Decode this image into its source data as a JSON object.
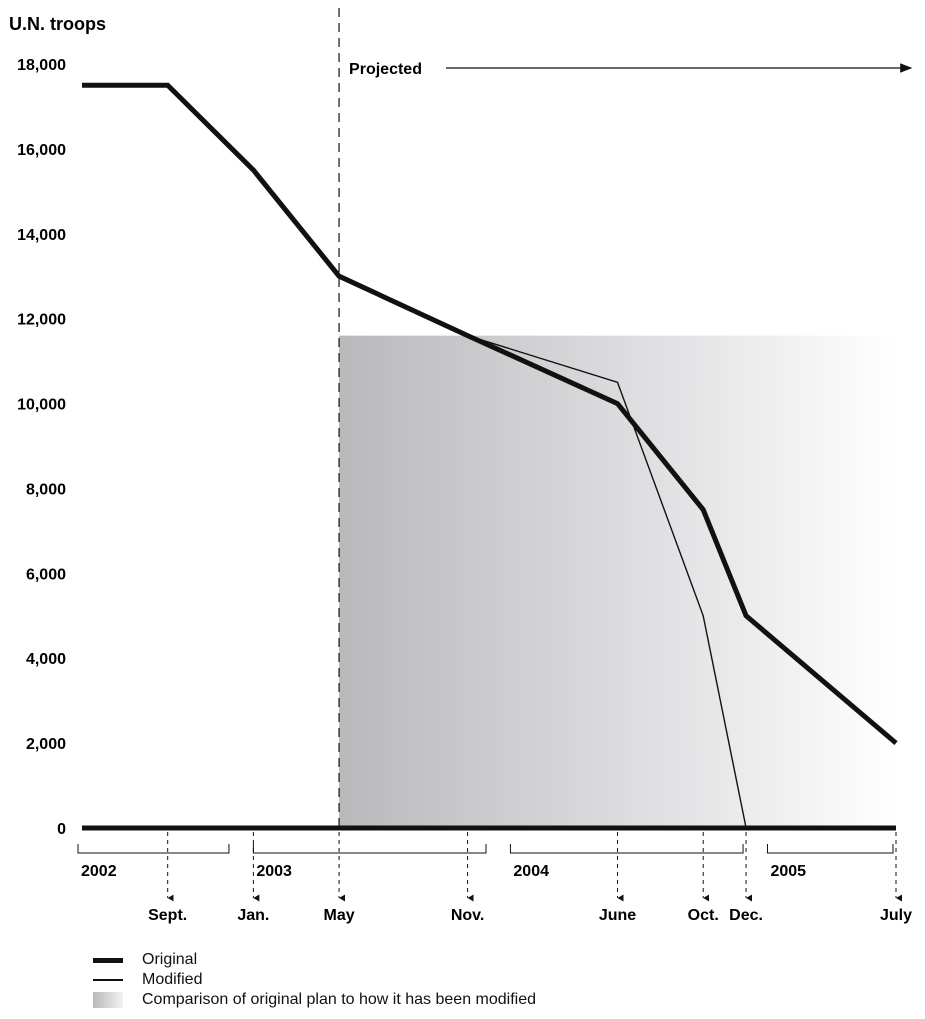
{
  "chart_data": {
    "type": "line",
    "ylabel": "U.N. troops",
    "ylim": [
      0,
      18000
    ],
    "yticks": [
      {
        "value": 18000,
        "label": "18,000"
      },
      {
        "value": 16000,
        "label": "16,000"
      },
      {
        "value": 14000,
        "label": "14,000"
      },
      {
        "value": 12000,
        "label": "12,000"
      },
      {
        "value": 10000,
        "label": "10,000"
      },
      {
        "value": 8000,
        "label": "8,000"
      },
      {
        "value": 6000,
        "label": "6,000"
      },
      {
        "value": 4000,
        "label": "4,000"
      },
      {
        "value": 2000,
        "label": "2,000"
      },
      {
        "value": 0,
        "label": "0"
      }
    ],
    "x_start": "2002-05",
    "x_end": "2005-07",
    "years": [
      {
        "label": "2002",
        "start": "2002-05",
        "end": "2002-12"
      },
      {
        "label": "2003",
        "start": "2003-01",
        "end": "2003-12"
      },
      {
        "label": "2004",
        "start": "2004-01",
        "end": "2004-12"
      },
      {
        "label": "2005",
        "start": "2005-01",
        "end": "2005-07"
      }
    ],
    "month_markers": [
      {
        "label": "Sept.",
        "date": "2002-09"
      },
      {
        "label": "Jan.",
        "date": "2003-01"
      },
      {
        "label": "May",
        "date": "2003-05"
      },
      {
        "label": "Nov.",
        "date": "2003-11"
      },
      {
        "label": "June",
        "date": "2004-06"
      },
      {
        "label": "Oct.",
        "date": "2004-10"
      },
      {
        "label": "Dec.",
        "date": "2004-12"
      },
      {
        "label": "July",
        "date": "2005-07"
      }
    ],
    "projected_from": "2003-05",
    "projected_label": "Projected",
    "series": [
      {
        "name": "Original",
        "points": [
          [
            "2002-05",
            17500
          ],
          [
            "2002-09",
            17500
          ],
          [
            "2003-01",
            15500
          ],
          [
            "2003-05",
            13000
          ],
          [
            "2003-11",
            11600
          ],
          [
            "2004-06",
            10000
          ],
          [
            "2004-10",
            7500
          ],
          [
            "2004-12",
            5000
          ],
          [
            "2005-07",
            2000
          ]
        ]
      },
      {
        "name": "Modified",
        "points": [
          [
            "2003-11",
            11600
          ],
          [
            "2004-06",
            10500
          ],
          [
            "2004-10",
            5000
          ],
          [
            "2004-12",
            0
          ]
        ]
      }
    ],
    "shaded_region": {
      "from": "2003-05",
      "to": "2005-07",
      "top": 11600
    }
  },
  "legend": {
    "original": "Original",
    "modified": "Modified",
    "shade": "Comparison of original plan to how it has been modified"
  },
  "colors": {
    "line": "#111111",
    "shade_dark": "#b9b9bb",
    "shade_light": "#ffffff"
  }
}
